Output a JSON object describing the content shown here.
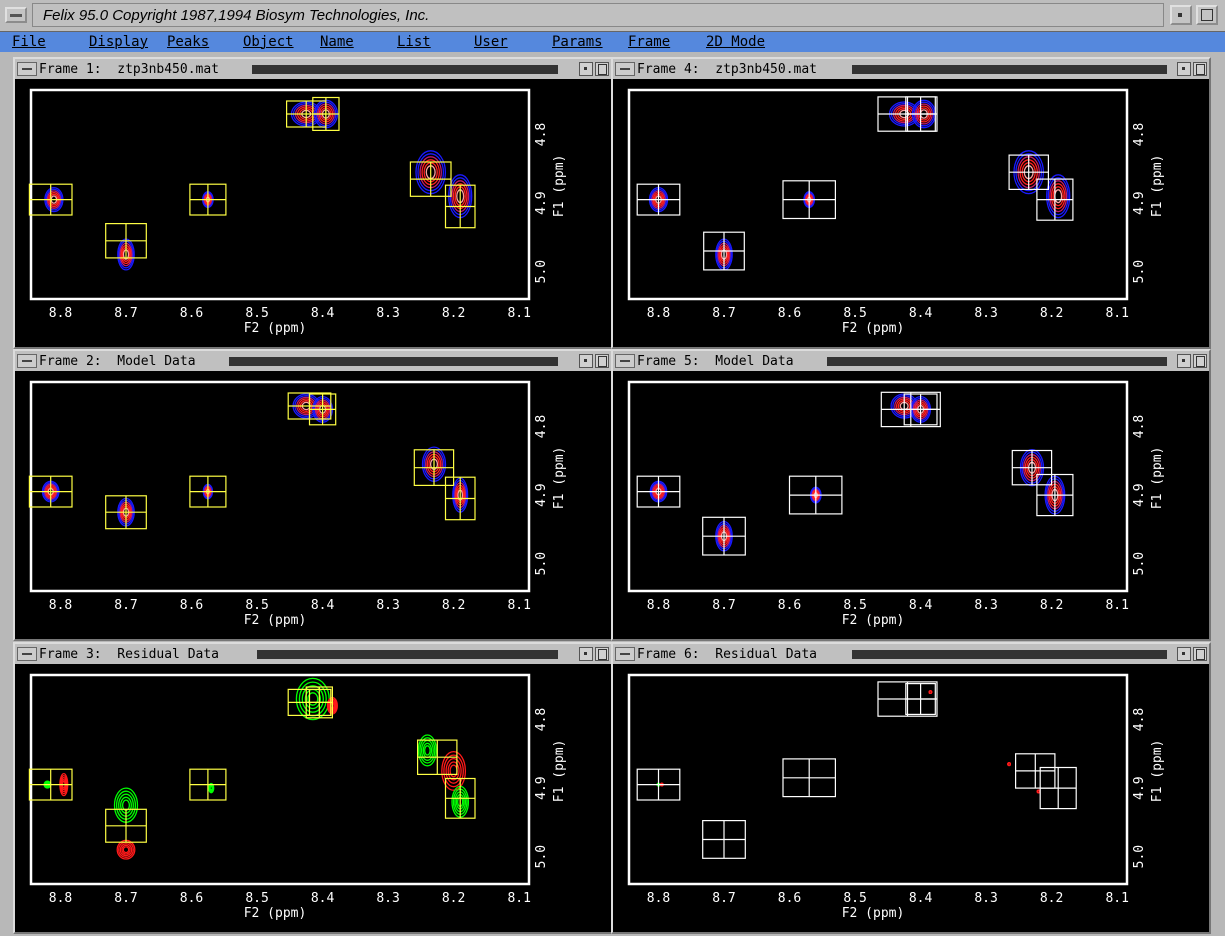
{
  "window": {
    "title": "Felix 95.0  Copyright 1987,1994 Biosym Technologies, Inc."
  },
  "menu": [
    "File",
    "Display",
    "Peaks",
    "Object",
    "Name",
    "List",
    "User",
    "Params",
    "Frame",
    "2D Mode"
  ],
  "axis": {
    "x_label": "F2 (ppm)",
    "y_label": "F1 (ppm)",
    "x_ticks": [
      "8.8",
      "8.7",
      "8.6",
      "8.5",
      "8.4",
      "8.3",
      "8.2",
      "8.1"
    ],
    "y_ticks": [
      "4.8",
      "4.9",
      "5.0"
    ]
  },
  "colors": {
    "background": "#000000",
    "plot_border": "#ffffff",
    "positive_contours": [
      "#1a1aff",
      "#c01b6b",
      "#ff2020",
      "#ffa0a0"
    ],
    "residual_positive": "#00ff00",
    "residual_negative": "#ff1a1a",
    "peak_box_left": "#ffff44",
    "peak_box_right": "#ffffff"
  },
  "frames": [
    {
      "id": 1,
      "title": "Frame 1:  ztp3nb450.mat",
      "type": "spectrum",
      "boxColor": "#ffff44",
      "peaks": [
        {
          "x": 8.81,
          "y": 4.895,
          "sx": 0.011,
          "sy": 0.014,
          "a": 1
        },
        {
          "x": 8.7,
          "y": 4.975,
          "sx": 0.01,
          "sy": 0.018,
          "a": 1
        },
        {
          "x": 8.575,
          "y": 4.895,
          "sx": 0.009,
          "sy": 0.013,
          "a": 0.7
        },
        {
          "x": 8.425,
          "y": 4.77,
          "sx": 0.018,
          "sy": 0.014,
          "a": 1
        },
        {
          "x": 8.395,
          "y": 4.77,
          "sx": 0.014,
          "sy": 0.016,
          "a": 1
        },
        {
          "x": 8.235,
          "y": 4.855,
          "sx": 0.018,
          "sy": 0.025,
          "a": 1
        },
        {
          "x": 8.19,
          "y": 4.89,
          "sx": 0.014,
          "sy": 0.025,
          "a": 1
        }
      ],
      "boxes": [
        {
          "x": 8.815,
          "y": 4.895,
          "w": 0.065,
          "h": 0.045
        },
        {
          "x": 8.7,
          "y": 4.955,
          "w": 0.062,
          "h": 0.05
        },
        {
          "x": 8.575,
          "y": 4.895,
          "w": 0.055,
          "h": 0.045
        },
        {
          "x": 8.425,
          "y": 4.77,
          "w": 0.06,
          "h": 0.038
        },
        {
          "x": 8.395,
          "y": 4.77,
          "w": 0.04,
          "h": 0.048
        },
        {
          "x": 8.235,
          "y": 4.865,
          "w": 0.062,
          "h": 0.05
        },
        {
          "x": 8.19,
          "y": 4.905,
          "w": 0.045,
          "h": 0.062
        }
      ]
    },
    {
      "id": 4,
      "title": "Frame 4:  ztp3nb450.mat",
      "type": "spectrum",
      "boxColor": "#ffffff",
      "peaks": [
        {
          "x": 8.8,
          "y": 4.895,
          "sx": 0.011,
          "sy": 0.014,
          "a": 1
        },
        {
          "x": 8.7,
          "y": 4.975,
          "sx": 0.01,
          "sy": 0.018,
          "a": 1
        },
        {
          "x": 8.57,
          "y": 4.895,
          "sx": 0.009,
          "sy": 0.013,
          "a": 0.7
        },
        {
          "x": 8.425,
          "y": 4.77,
          "sx": 0.018,
          "sy": 0.014,
          "a": 1
        },
        {
          "x": 8.395,
          "y": 4.77,
          "sx": 0.014,
          "sy": 0.016,
          "a": 1
        },
        {
          "x": 8.235,
          "y": 4.855,
          "sx": 0.018,
          "sy": 0.025,
          "a": 1
        },
        {
          "x": 8.19,
          "y": 4.89,
          "sx": 0.014,
          "sy": 0.025,
          "a": 1
        }
      ],
      "boxes": [
        {
          "x": 8.8,
          "y": 4.895,
          "w": 0.065,
          "h": 0.045
        },
        {
          "x": 8.7,
          "y": 4.97,
          "w": 0.062,
          "h": 0.055
        },
        {
          "x": 8.57,
          "y": 4.895,
          "w": 0.08,
          "h": 0.055
        },
        {
          "x": 8.42,
          "y": 4.77,
          "w": 0.09,
          "h": 0.05
        },
        {
          "x": 8.4,
          "y": 4.77,
          "w": 0.045,
          "h": 0.05
        },
        {
          "x": 8.235,
          "y": 4.855,
          "w": 0.06,
          "h": 0.05
        },
        {
          "x": 8.195,
          "y": 4.895,
          "w": 0.055,
          "h": 0.06
        }
      ]
    },
    {
      "id": 2,
      "title": "Frame 2:  Model Data",
      "type": "spectrum",
      "boxColor": "#ffff44",
      "peaks": [
        {
          "x": 8.815,
          "y": 4.895,
          "sx": 0.01,
          "sy": 0.012,
          "a": 1
        },
        {
          "x": 8.7,
          "y": 4.925,
          "sx": 0.01,
          "sy": 0.016,
          "a": 1
        },
        {
          "x": 8.575,
          "y": 4.895,
          "sx": 0.008,
          "sy": 0.012,
          "a": 0.7
        },
        {
          "x": 8.425,
          "y": 4.77,
          "sx": 0.016,
          "sy": 0.014,
          "a": 1
        },
        {
          "x": 8.4,
          "y": 4.775,
          "sx": 0.012,
          "sy": 0.015,
          "a": 1
        },
        {
          "x": 8.23,
          "y": 4.855,
          "sx": 0.014,
          "sy": 0.02,
          "a": 1
        },
        {
          "x": 8.19,
          "y": 4.9,
          "sx": 0.01,
          "sy": 0.022,
          "a": 0.9
        }
      ],
      "boxes": [
        {
          "x": 8.815,
          "y": 4.895,
          "w": 0.065,
          "h": 0.045
        },
        {
          "x": 8.7,
          "y": 4.925,
          "w": 0.062,
          "h": 0.048
        },
        {
          "x": 8.575,
          "y": 4.895,
          "w": 0.055,
          "h": 0.045
        },
        {
          "x": 8.42,
          "y": 4.77,
          "w": 0.065,
          "h": 0.038
        },
        {
          "x": 8.4,
          "y": 4.775,
          "w": 0.04,
          "h": 0.045
        },
        {
          "x": 8.23,
          "y": 4.86,
          "w": 0.06,
          "h": 0.052
        },
        {
          "x": 8.19,
          "y": 4.905,
          "w": 0.045,
          "h": 0.062
        }
      ]
    },
    {
      "id": 5,
      "title": "Frame 5:  Model Data",
      "type": "spectrum",
      "boxColor": "#ffffff",
      "peaks": [
        {
          "x": 8.8,
          "y": 4.895,
          "sx": 0.01,
          "sy": 0.012,
          "a": 1
        },
        {
          "x": 8.7,
          "y": 4.96,
          "sx": 0.01,
          "sy": 0.017,
          "a": 1
        },
        {
          "x": 8.56,
          "y": 4.9,
          "sx": 0.009,
          "sy": 0.013,
          "a": 0.7
        },
        {
          "x": 8.425,
          "y": 4.77,
          "sx": 0.016,
          "sy": 0.014,
          "a": 1
        },
        {
          "x": 8.4,
          "y": 4.775,
          "sx": 0.012,
          "sy": 0.015,
          "a": 1
        },
        {
          "x": 8.23,
          "y": 4.86,
          "sx": 0.014,
          "sy": 0.021,
          "a": 1
        },
        {
          "x": 8.195,
          "y": 4.9,
          "sx": 0.012,
          "sy": 0.022,
          "a": 1
        }
      ],
      "boxes": [
        {
          "x": 8.8,
          "y": 4.895,
          "w": 0.065,
          "h": 0.045
        },
        {
          "x": 8.7,
          "y": 4.96,
          "w": 0.065,
          "h": 0.055
        },
        {
          "x": 8.56,
          "y": 4.9,
          "w": 0.08,
          "h": 0.055
        },
        {
          "x": 8.415,
          "y": 4.775,
          "w": 0.09,
          "h": 0.05
        },
        {
          "x": 8.4,
          "y": 4.775,
          "w": 0.05,
          "h": 0.045
        },
        {
          "x": 8.23,
          "y": 4.86,
          "w": 0.06,
          "h": 0.05
        },
        {
          "x": 8.195,
          "y": 4.9,
          "w": 0.055,
          "h": 0.06
        }
      ]
    },
    {
      "id": 3,
      "title": "Frame 3:  Residual Data",
      "type": "residual",
      "boxColor": "#ffff44",
      "peaks": [
        {
          "x": 8.82,
          "y": 4.895,
          "sx": 0.008,
          "sy": 0.008,
          "a": 0.5,
          "c": "#00ff00"
        },
        {
          "x": 8.795,
          "y": 4.895,
          "sx": 0.006,
          "sy": 0.016,
          "a": 0.8,
          "c": "#ff1a1a"
        },
        {
          "x": 8.7,
          "y": 4.925,
          "sx": 0.014,
          "sy": 0.02,
          "a": 1,
          "c": "#00ff00"
        },
        {
          "x": 8.7,
          "y": 4.99,
          "sx": 0.012,
          "sy": 0.012,
          "a": 0.9,
          "c": "#ff1a1a"
        },
        {
          "x": 8.57,
          "y": 4.9,
          "sx": 0.005,
          "sy": 0.009,
          "a": 0.6,
          "c": "#00ff00"
        },
        {
          "x": 8.415,
          "y": 4.77,
          "sx": 0.02,
          "sy": 0.024,
          "a": 1,
          "c": "#00ff00"
        },
        {
          "x": 8.385,
          "y": 4.78,
          "sx": 0.01,
          "sy": 0.016,
          "a": 0.6,
          "c": "#ff1a1a"
        },
        {
          "x": 8.24,
          "y": 4.845,
          "sx": 0.011,
          "sy": 0.018,
          "a": 1,
          "c": "#00ff00"
        },
        {
          "x": 8.2,
          "y": 4.875,
          "sx": 0.016,
          "sy": 0.025,
          "a": 0.9,
          "c": "#ff1a1a"
        },
        {
          "x": 8.19,
          "y": 4.92,
          "sx": 0.01,
          "sy": 0.018,
          "a": 1,
          "c": "#00ff00"
        }
      ],
      "boxes": [
        {
          "x": 8.815,
          "y": 4.895,
          "w": 0.065,
          "h": 0.045
        },
        {
          "x": 8.7,
          "y": 4.955,
          "w": 0.062,
          "h": 0.048
        },
        {
          "x": 8.575,
          "y": 4.895,
          "w": 0.055,
          "h": 0.045
        },
        {
          "x": 8.42,
          "y": 4.775,
          "w": 0.065,
          "h": 0.038
        },
        {
          "x": 8.405,
          "y": 4.775,
          "w": 0.04,
          "h": 0.045
        },
        {
          "x": 8.225,
          "y": 4.855,
          "w": 0.06,
          "h": 0.05
        },
        {
          "x": 8.19,
          "y": 4.915,
          "w": 0.045,
          "h": 0.058
        }
      ]
    },
    {
      "id": 6,
      "title": "Frame 6:  Residual Data",
      "type": "residual",
      "boxColor": "#ffffff",
      "peaks": [
        {
          "x": 8.8,
          "y": 4.895,
          "sx": 0.003,
          "sy": 0.004,
          "a": 0.3,
          "c": "#00ff00"
        },
        {
          "x": 8.795,
          "y": 4.895,
          "sx": 0.002,
          "sy": 0.004,
          "a": 0.3,
          "c": "#ff1a1a"
        },
        {
          "x": 8.385,
          "y": 4.76,
          "sx": 0.004,
          "sy": 0.005,
          "a": 0.3,
          "c": "#ff1a1a"
        },
        {
          "x": 8.265,
          "y": 4.865,
          "sx": 0.004,
          "sy": 0.006,
          "a": 0.3,
          "c": "#ff1a1a"
        },
        {
          "x": 8.22,
          "y": 4.905,
          "sx": 0.003,
          "sy": 0.004,
          "a": 0.3,
          "c": "#ff1a1a"
        }
      ],
      "boxes": [
        {
          "x": 8.8,
          "y": 4.895,
          "w": 0.065,
          "h": 0.045
        },
        {
          "x": 8.7,
          "y": 4.975,
          "w": 0.065,
          "h": 0.055
        },
        {
          "x": 8.57,
          "y": 4.885,
          "w": 0.08,
          "h": 0.055
        },
        {
          "x": 8.42,
          "y": 4.77,
          "w": 0.09,
          "h": 0.05
        },
        {
          "x": 8.4,
          "y": 4.77,
          "w": 0.045,
          "h": 0.045
        },
        {
          "x": 8.225,
          "y": 4.875,
          "w": 0.06,
          "h": 0.05
        },
        {
          "x": 8.19,
          "y": 4.9,
          "w": 0.055,
          "h": 0.06
        }
      ]
    }
  ]
}
